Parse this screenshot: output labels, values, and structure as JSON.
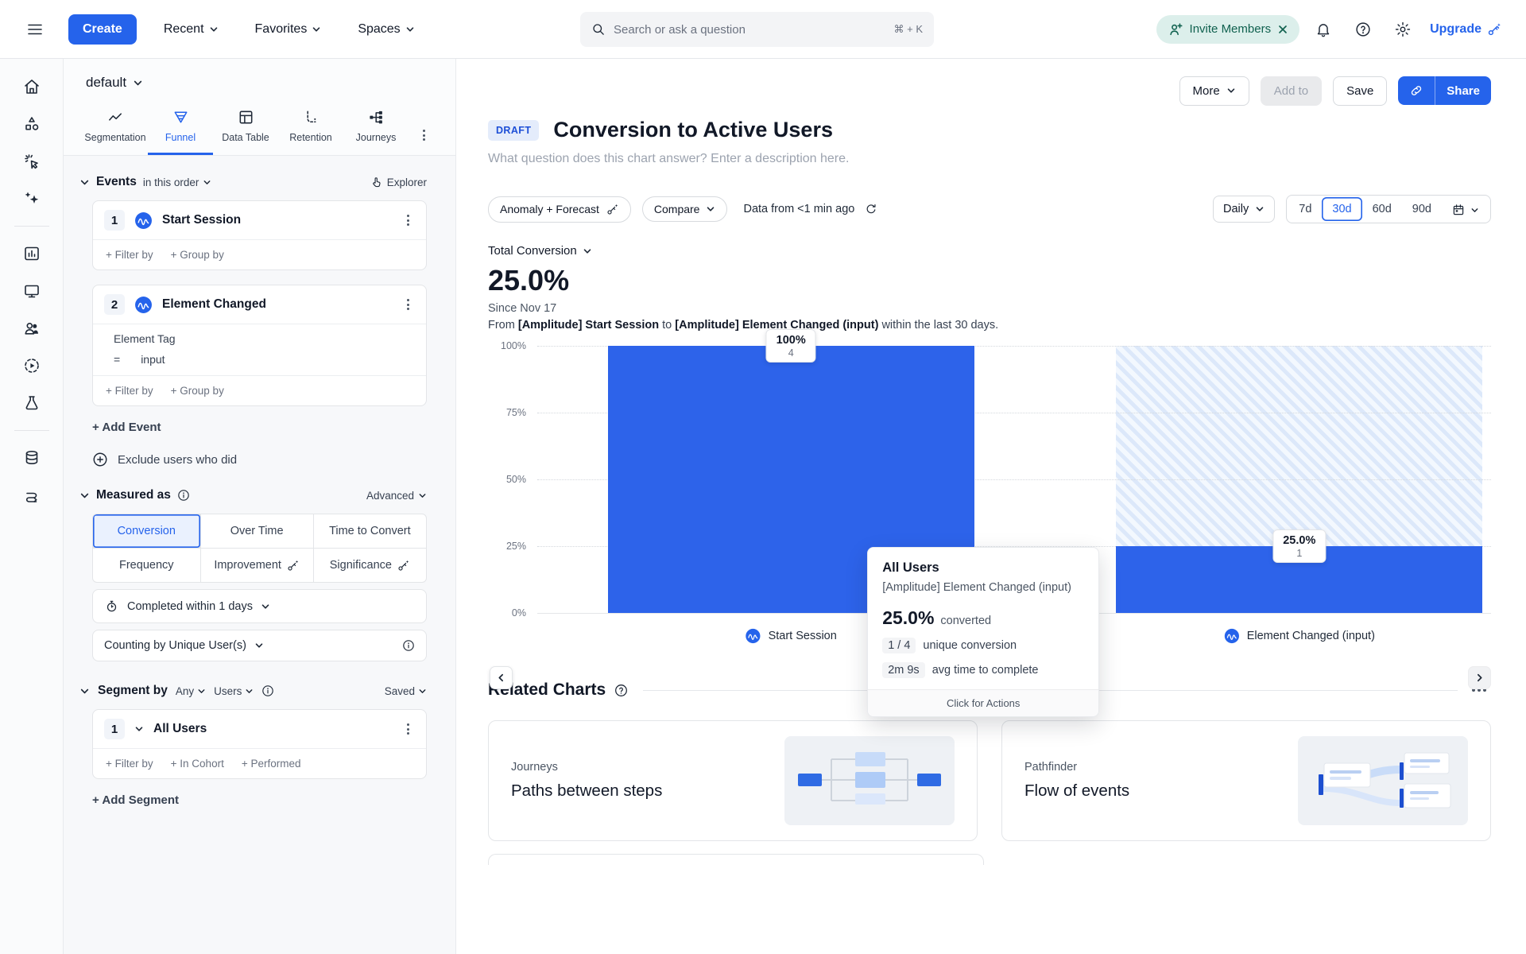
{
  "topnav": {
    "create": "Create",
    "recent": "Recent",
    "favorites": "Favorites",
    "spaces": "Spaces",
    "search_placeholder": "Search or ask a question",
    "search_shortcut": "⌘ + K",
    "invite": "Invite Members",
    "upgrade": "Upgrade"
  },
  "panel": {
    "workspace": "default",
    "tabs": [
      {
        "label": "Segmentation"
      },
      {
        "label": "Funnel"
      },
      {
        "label": "Data Table"
      },
      {
        "label": "Retention"
      },
      {
        "label": "Journeys"
      }
    ],
    "events": {
      "title": "Events",
      "order": "in this order",
      "explorer": "Explorer",
      "event1": {
        "num": "1",
        "name": "Start Session",
        "filter": "+ Filter by",
        "group": "+ Group by"
      },
      "event2": {
        "num": "2",
        "name": "Element Changed",
        "property": "Element Tag",
        "operator": "=",
        "value": "input",
        "filter": "+ Filter by",
        "group": "+ Group by"
      },
      "add_event": "+ Add Event",
      "exclude": "Exclude users who did"
    },
    "measured": {
      "title": "Measured as",
      "advanced": "Advanced",
      "options": [
        "Conversion",
        "Over Time",
        "Time to Convert",
        "Frequency",
        "Improvement",
        "Significance"
      ],
      "selected": "Conversion",
      "completed_within": "Completed within 1 days",
      "counting_by": "Counting by Unique User(s)"
    },
    "segment": {
      "title": "Segment by",
      "any": "Any",
      "users": "Users",
      "saved": "Saved",
      "seg1": {
        "num": "1",
        "name": "All Users",
        "filter": "+ Filter by",
        "cohort": "+ In Cohort",
        "performed": "+ Performed"
      },
      "add_segment": "+ Add Segment"
    }
  },
  "main": {
    "draft": "DRAFT",
    "title": "Conversion to Active Users",
    "description_placeholder": "What question does this chart answer? Enter a description here.",
    "toolbar": {
      "more": "More",
      "add_to": "Add to",
      "save": "Save",
      "share": "Share"
    },
    "controls": {
      "anomaly": "Anomaly + Forecast",
      "compare": "Compare",
      "freshness": "Data from <1 min ago",
      "granularity": "Daily",
      "ranges": [
        "7d",
        "30d",
        "60d",
        "90d"
      ],
      "selected_range": "30d"
    },
    "summary": {
      "metric_label": "Total Conversion",
      "value": "25.0%",
      "since": "Since Nov 17",
      "desc_prefix": "From ",
      "desc_event1": "[Amplitude] Start Session",
      "desc_mid": " to ",
      "desc_event2": "[Amplitude] Element Changed (input)",
      "desc_suffix": " within the last 30 days."
    },
    "chart_data": {
      "type": "bar",
      "title": "Total Conversion funnel",
      "categories": [
        "Start Session",
        "Element Changed (input)"
      ],
      "values": [
        100,
        25
      ],
      "counts": [
        4,
        1
      ],
      "bar_labels": [
        {
          "pct": "100%",
          "count": "4"
        },
        {
          "pct": "25.0%",
          "count": "1"
        }
      ],
      "yticks": [
        "100%",
        "75%",
        "50%",
        "25%",
        "0%"
      ],
      "ylim": [
        0,
        100
      ],
      "grid": "dotted horizontal",
      "bar_color": "#2d63ea"
    },
    "tooltip": {
      "segment": "All Users",
      "event": "[Amplitude] Element Changed (input)",
      "converted_value": "25.0%",
      "converted_label": "converted",
      "ratio": "1 / 4",
      "ratio_label": "unique conversion",
      "time": "2m 9s",
      "time_label": "avg time to complete",
      "footer": "Click for Actions"
    },
    "related": {
      "title": "Related Charts",
      "cards": [
        {
          "category": "Journeys",
          "title": "Paths between steps"
        },
        {
          "category": "Pathfinder",
          "title": "Flow of events"
        }
      ]
    }
  },
  "colors": {
    "accent": "#2563eb",
    "bar": "#2d63ea",
    "invite_bg": "#dcefeb",
    "invite_text": "#10614f",
    "draft_bg": "#e4ecfb",
    "draft_text": "#1d4fd7"
  }
}
